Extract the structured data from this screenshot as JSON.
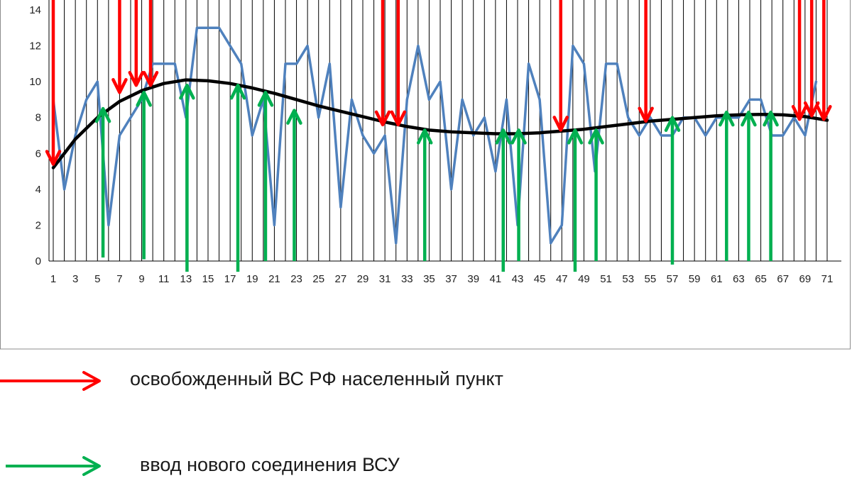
{
  "chart_data": {
    "type": "line",
    "title": "",
    "xlabel": "",
    "ylabel": "",
    "x_tick_labels": [
      "1",
      "3",
      "5",
      "7",
      "9",
      "11",
      "13",
      "15",
      "17",
      "19",
      "21",
      "23",
      "25",
      "27",
      "29",
      "31",
      "33",
      "35",
      "37",
      "39",
      "41",
      "43",
      "45",
      "47",
      "49",
      "51",
      "53",
      "55",
      "57",
      "59",
      "61",
      "63",
      "65",
      "67",
      "69",
      "71"
    ],
    "y_tick_labels": [
      "0",
      "2",
      "4",
      "6",
      "8",
      "10",
      "12",
      "14"
    ],
    "xlim": [
      1,
      71
    ],
    "ylim": [
      0,
      14
    ],
    "grid": "vertical lines at every x",
    "series": [
      {
        "name": "",
        "color": "#4f81bd",
        "x": [
          1,
          2,
          3,
          4,
          5,
          6,
          7,
          8,
          9,
          10,
          11,
          12,
          13,
          14,
          15,
          16,
          17,
          18,
          19,
          20,
          21,
          22,
          23,
          24,
          25,
          26,
          27,
          28,
          29,
          30,
          31,
          32,
          33,
          34,
          35,
          36,
          37,
          38,
          39,
          40,
          41,
          42,
          43,
          44,
          45,
          46,
          47,
          48,
          49,
          50,
          51,
          52,
          53,
          54,
          55,
          56,
          57,
          58,
          59,
          60,
          61,
          62,
          63,
          64,
          65,
          66,
          67,
          68,
          69,
          70
        ],
        "y": [
          9,
          4,
          7,
          9,
          10,
          2,
          7,
          8,
          9,
          11,
          11,
          11,
          8,
          13,
          13,
          13,
          12,
          11,
          7,
          9,
          2,
          11,
          11,
          12,
          8,
          11,
          3,
          9,
          7,
          6,
          7,
          1,
          9,
          12,
          9,
          10,
          4,
          9,
          7,
          8,
          5,
          9,
          2,
          11,
          9,
          1,
          2,
          12,
          11,
          5,
          11,
          11,
          8,
          7,
          8,
          7,
          7,
          8,
          8,
          7,
          8,
          8,
          8,
          9,
          9,
          7,
          7,
          8,
          7,
          10
        ]
      },
      {
        "name": "",
        "color": "#000000",
        "x": [
          1,
          3,
          5,
          7,
          9,
          11,
          13,
          15,
          17,
          19,
          21,
          23,
          25,
          27,
          29,
          31,
          33,
          35,
          37,
          39,
          41,
          43,
          45,
          47,
          49,
          51,
          53,
          55,
          57,
          59,
          61,
          63,
          65,
          67,
          69,
          71
        ],
        "y": [
          5.2,
          6.8,
          8.0,
          8.9,
          9.5,
          9.9,
          10.1,
          10.05,
          9.9,
          9.65,
          9.35,
          9.0,
          8.65,
          8.35,
          8.05,
          7.75,
          7.5,
          7.3,
          7.2,
          7.15,
          7.1,
          7.1,
          7.15,
          7.25,
          7.35,
          7.5,
          7.65,
          7.8,
          7.9,
          8.0,
          8.1,
          8.15,
          8.18,
          8.15,
          8.05,
          7.85
        ]
      }
    ],
    "annotations": {
      "red_down_arrows": [
        {
          "x": 1,
          "tip_y": 5.4
        },
        {
          "x": 7,
          "tip_y": 9.4
        },
        {
          "x": 8.5,
          "tip_y": 9.8
        },
        {
          "x": 9.8,
          "tip_y": 9.8
        },
        {
          "x": 30.8,
          "tip_y": 7.6
        },
        {
          "x": 32.2,
          "tip_y": 7.6
        },
        {
          "x": 46.9,
          "tip_y": 7.3
        },
        {
          "x": 54.6,
          "tip_y": 7.8
        },
        {
          "x": 68.5,
          "tip_y": 7.9
        },
        {
          "x": 69.6,
          "tip_y": 8.1
        },
        {
          "x": 70.7,
          "tip_y": 7.9
        }
      ],
      "green_up_arrows": [
        {
          "x": 5.5,
          "tip_y": 8.5,
          "tail_y": 0.2
        },
        {
          "x": 9.2,
          "tip_y": 9.4,
          "tail_y": 0.1
        },
        {
          "x": 13.1,
          "tip_y": 9.8,
          "tail_y": -0.6
        },
        {
          "x": 17.7,
          "tip_y": 9.8,
          "tail_y": -0.6
        },
        {
          "x": 20.2,
          "tip_y": 9.4,
          "tail_y": 0.0
        },
        {
          "x": 22.8,
          "tip_y": 8.4,
          "tail_y": 0.0
        },
        {
          "x": 34.6,
          "tip_y": 7.3,
          "tail_y": 0.0
        },
        {
          "x": 41.7,
          "tip_y": 7.3,
          "tail_y": -0.6
        },
        {
          "x": 43.1,
          "tip_y": 7.3,
          "tail_y": 0.0
        },
        {
          "x": 48.2,
          "tip_y": 7.3,
          "tail_y": -0.6
        },
        {
          "x": 50.1,
          "tip_y": 7.3,
          "tail_y": 0.0
        },
        {
          "x": 57.0,
          "tip_y": 8.0,
          "tail_y": -0.2
        },
        {
          "x": 61.9,
          "tip_y": 8.3,
          "tail_y": 0.0
        },
        {
          "x": 63.9,
          "tip_y": 8.3,
          "tail_y": 0.0
        },
        {
          "x": 65.9,
          "tip_y": 8.3,
          "tail_y": 0.0
        }
      ],
      "red_color": "#ff0000",
      "green_color": "#00b050"
    }
  },
  "legend": {
    "red_label": "освобожденный ВС РФ населенный пункт",
    "green_label": "ввод нового соединения ВСУ"
  }
}
